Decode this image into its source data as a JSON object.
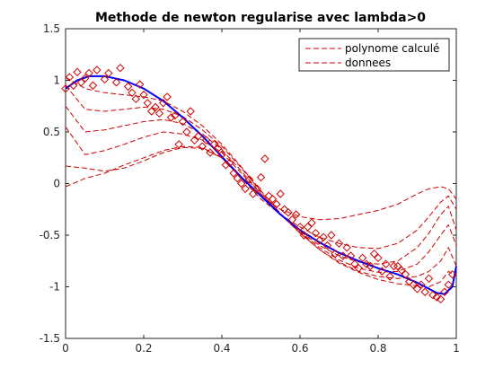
{
  "chart_data": {
    "type": "scatter",
    "title": "Methode de newton regularise avec lambda>0",
    "xlabel": "",
    "ylabel": "",
    "xlim": [
      0,
      1
    ],
    "ylim": [
      -1.5,
      1.5
    ],
    "xticks": [
      0,
      0.2,
      0.4,
      0.6,
      0.8,
      1
    ],
    "xtick_labels": [
      "0",
      "0.2",
      "0.4",
      "0.6",
      "0.8",
      "1"
    ],
    "yticks": [
      -1.5,
      -1,
      -0.5,
      0,
      0.5,
      1,
      1.5
    ],
    "ytick_labels": [
      "-1.5",
      "-1",
      "-0.5",
      "0",
      "0.5",
      "1",
      "1.5"
    ],
    "grid": false,
    "legend_position": "top-right",
    "legend": [
      {
        "label": "polynome calculé",
        "style": "dashed",
        "color": "#cc0000"
      },
      {
        "label": "donnees",
        "style": "dashed",
        "color": "#cc0000"
      }
    ],
    "series": [
      {
        "style": "dashed",
        "color": "#cc0000",
        "x": [
          0,
          0.05,
          0.1,
          0.15,
          0.2,
          0.25,
          0.3,
          0.35,
          0.4,
          0.45,
          0.5,
          0.55,
          0.6,
          0.65,
          0.7,
          0.75,
          0.8,
          0.85,
          0.9,
          0.93,
          0.96,
          0.98,
          1
        ],
        "y": [
          -0.03,
          0.05,
          0.1,
          0.18,
          0.25,
          0.32,
          0.36,
          0.35,
          0.25,
          0.05,
          -0.12,
          -0.25,
          -0.32,
          -0.35,
          -0.34,
          -0.3,
          -0.26,
          -0.2,
          -0.1,
          -0.05,
          -0.03,
          -0.05,
          -0.15
        ]
      },
      {
        "style": "dashed",
        "color": "#cc0000",
        "x": [
          0,
          0.05,
          0.1,
          0.15,
          0.2,
          0.25,
          0.3,
          0.35,
          0.4,
          0.45,
          0.5,
          0.55,
          0.6,
          0.65,
          0.7,
          0.75,
          0.8,
          0.85,
          0.9,
          0.93,
          0.96,
          0.98,
          1
        ],
        "y": [
          0.17,
          0.15,
          0.12,
          0.15,
          0.22,
          0.3,
          0.35,
          0.34,
          0.25,
          0.05,
          -0.15,
          -0.3,
          -0.42,
          -0.52,
          -0.58,
          -0.62,
          -0.63,
          -0.58,
          -0.45,
          -0.32,
          -0.18,
          -0.12,
          -0.25
        ]
      },
      {
        "style": "dashed",
        "color": "#cc0000",
        "x": [
          0,
          0.05,
          0.1,
          0.15,
          0.2,
          0.25,
          0.3,
          0.35,
          0.4,
          0.45,
          0.5,
          0.55,
          0.6,
          0.65,
          0.7,
          0.75,
          0.8,
          0.85,
          0.9,
          0.93,
          0.96,
          0.98,
          1
        ],
        "y": [
          0.55,
          0.28,
          0.32,
          0.38,
          0.45,
          0.5,
          0.48,
          0.42,
          0.3,
          0.1,
          -0.1,
          -0.3,
          -0.46,
          -0.6,
          -0.7,
          -0.76,
          -0.78,
          -0.75,
          -0.62,
          -0.48,
          -0.3,
          -0.22,
          -0.45
        ]
      },
      {
        "style": "dashed",
        "color": "#cc0000",
        "x": [
          0,
          0.05,
          0.1,
          0.15,
          0.2,
          0.25,
          0.3,
          0.35,
          0.4,
          0.45,
          0.5,
          0.55,
          0.6,
          0.65,
          0.7,
          0.75,
          0.8,
          0.85,
          0.9,
          0.93,
          0.96,
          0.98,
          1
        ],
        "y": [
          0.75,
          0.5,
          0.52,
          0.56,
          0.6,
          0.62,
          0.58,
          0.48,
          0.33,
          0.12,
          -0.1,
          -0.3,
          -0.47,
          -0.62,
          -0.74,
          -0.82,
          -0.86,
          -0.85,
          -0.78,
          -0.66,
          -0.5,
          -0.4,
          -0.6
        ]
      },
      {
        "style": "dashed",
        "color": "#cc0000",
        "x": [
          0,
          0.05,
          0.1,
          0.15,
          0.2,
          0.25,
          0.3,
          0.35,
          0.4,
          0.45,
          0.5,
          0.55,
          0.6,
          0.65,
          0.7,
          0.75,
          0.8,
          0.85,
          0.9,
          0.93,
          0.96,
          0.98,
          1
        ],
        "y": [
          0.95,
          0.72,
          0.7,
          0.72,
          0.74,
          0.72,
          0.65,
          0.52,
          0.36,
          0.15,
          -0.08,
          -0.3,
          -0.48,
          -0.64,
          -0.76,
          -0.85,
          -0.9,
          -0.92,
          -0.9,
          -0.85,
          -0.75,
          -0.62,
          -0.8
        ]
      },
      {
        "style": "dashed",
        "color": "#cc0000",
        "x": [
          0,
          0.05,
          0.1,
          0.15,
          0.2,
          0.25,
          0.3,
          0.35,
          0.4,
          0.45,
          0.5,
          0.55,
          0.6,
          0.65,
          0.7,
          0.75,
          0.8,
          0.85,
          0.9,
          0.93,
          0.96,
          0.98,
          1
        ],
        "y": [
          1.03,
          0.92,
          0.88,
          0.86,
          0.84,
          0.8,
          0.7,
          0.56,
          0.38,
          0.16,
          -0.07,
          -0.29,
          -0.48,
          -0.64,
          -0.77,
          -0.86,
          -0.93,
          -0.97,
          -0.99,
          -1.0,
          -0.95,
          -0.85,
          -0.9
        ]
      },
      {
        "style": "solid",
        "color": "#0000ff",
        "x": [
          0,
          0.03,
          0.06,
          0.1,
          0.15,
          0.2,
          0.25,
          0.3,
          0.35,
          0.4,
          0.45,
          0.5,
          0.55,
          0.6,
          0.65,
          0.7,
          0.75,
          0.8,
          0.85,
          0.9,
          0.93,
          0.95,
          0.97,
          0.99,
          1
        ],
        "y": [
          0.92,
          1.0,
          1.04,
          1.04,
          1.0,
          0.92,
          0.8,
          0.64,
          0.46,
          0.26,
          0.06,
          -0.12,
          -0.3,
          -0.45,
          -0.57,
          -0.67,
          -0.75,
          -0.82,
          -0.88,
          -0.96,
          -1.02,
          -1.06,
          -1.07,
          -1.0,
          -0.8
        ]
      }
    ],
    "points": {
      "marker": "diamond",
      "color": "#cc0000",
      "x": [
        0.0,
        0.01,
        0.02,
        0.03,
        0.04,
        0.05,
        0.06,
        0.07,
        0.08,
        0.1,
        0.11,
        0.13,
        0.14,
        0.16,
        0.17,
        0.18,
        0.19,
        0.2,
        0.21,
        0.22,
        0.23,
        0.24,
        0.25,
        0.26,
        0.27,
        0.28,
        0.29,
        0.3,
        0.31,
        0.32,
        0.33,
        0.34,
        0.35,
        0.36,
        0.37,
        0.38,
        0.39,
        0.4,
        0.41,
        0.42,
        0.43,
        0.44,
        0.45,
        0.46,
        0.47,
        0.48,
        0.49,
        0.5,
        0.51,
        0.52,
        0.53,
        0.54,
        0.55,
        0.56,
        0.57,
        0.58,
        0.59,
        0.6,
        0.61,
        0.62,
        0.63,
        0.64,
        0.65,
        0.66,
        0.67,
        0.68,
        0.69,
        0.7,
        0.71,
        0.72,
        0.73,
        0.74,
        0.75,
        0.76,
        0.77,
        0.78,
        0.79,
        0.8,
        0.81,
        0.82,
        0.83,
        0.84,
        0.85,
        0.86,
        0.87,
        0.88,
        0.89,
        0.9,
        0.91,
        0.92,
        0.93,
        0.94,
        0.95,
        0.96,
        0.97,
        0.98,
        0.99
      ],
      "y": [
        0.92,
        1.03,
        0.95,
        1.08,
        0.98,
        1.02,
        1.07,
        0.95,
        1.1,
        1.01,
        1.07,
        0.98,
        1.12,
        0.94,
        0.88,
        0.82,
        0.96,
        0.86,
        0.78,
        0.7,
        0.74,
        0.68,
        0.78,
        0.84,
        0.64,
        0.66,
        0.38,
        0.6,
        0.5,
        0.7,
        0.42,
        0.46,
        0.36,
        0.42,
        0.3,
        0.38,
        0.34,
        0.28,
        0.18,
        0.2,
        0.1,
        0.05,
        0.0,
        -0.05,
        0.04,
        -0.1,
        -0.05,
        0.06,
        0.24,
        -0.12,
        -0.15,
        -0.2,
        -0.1,
        -0.25,
        -0.28,
        -0.35,
        -0.3,
        -0.42,
        -0.5,
        -0.42,
        -0.38,
        -0.48,
        -0.55,
        -0.52,
        -0.6,
        -0.5,
        -0.68,
        -0.58,
        -0.7,
        -0.62,
        -0.7,
        -0.78,
        -0.82,
        -0.72,
        -0.78,
        -0.8,
        -0.68,
        -0.72,
        -0.85,
        -0.78,
        -0.9,
        -0.8,
        -0.8,
        -0.84,
        -0.88,
        -0.95,
        -0.98,
        -1.02,
        -0.98,
        -1.05,
        -0.92,
        -1.08,
        -1.1,
        -1.12,
        -1.05,
        -0.98,
        -0.88
      ]
    }
  }
}
